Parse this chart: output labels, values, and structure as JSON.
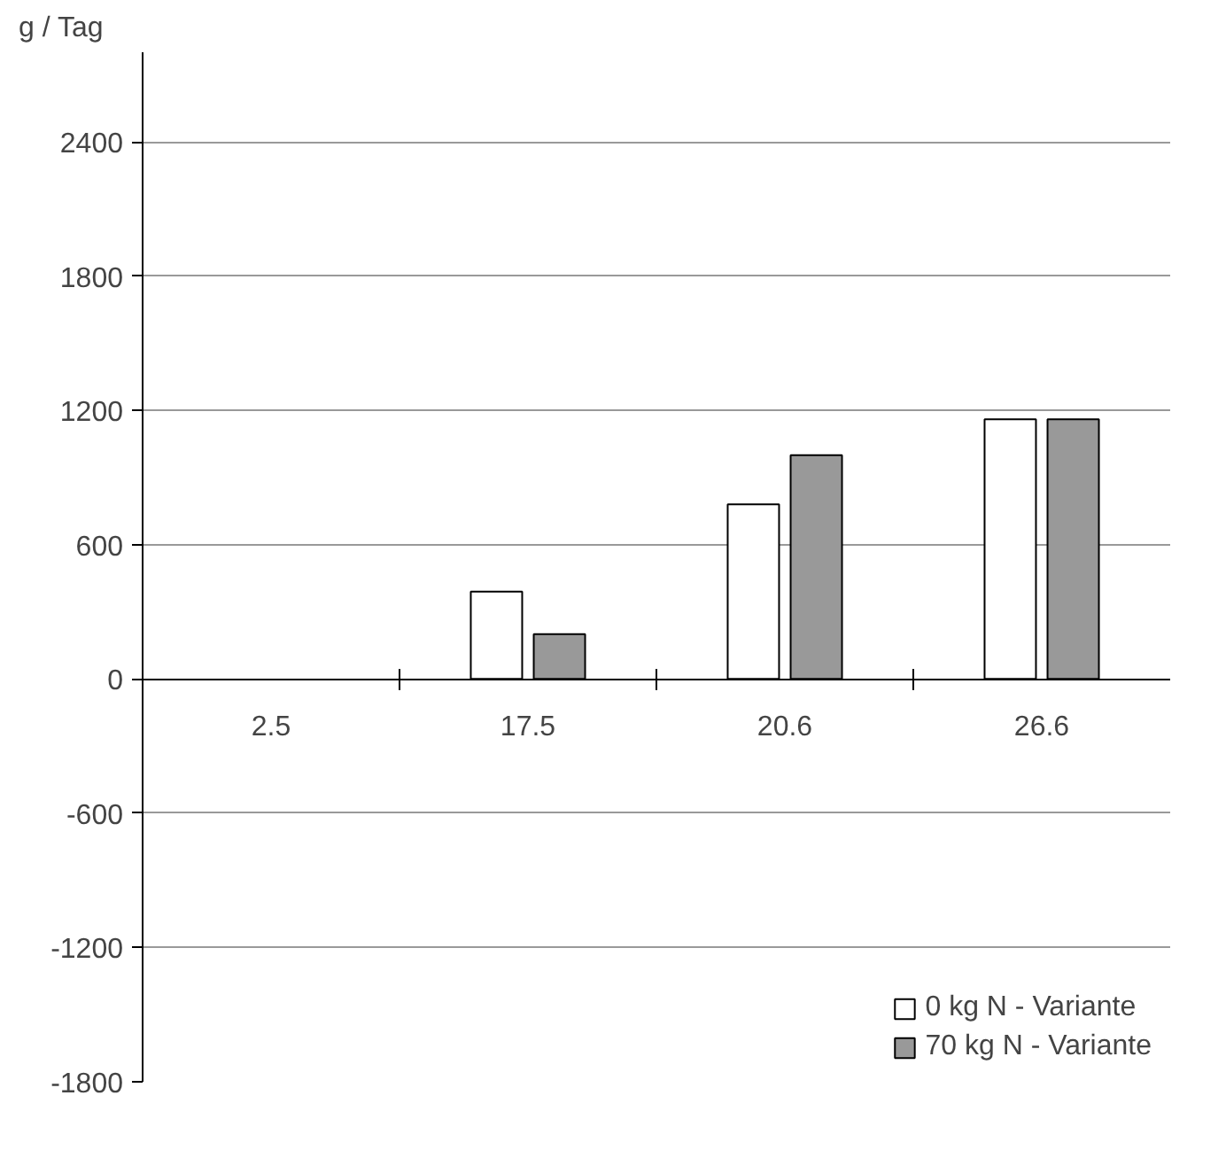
{
  "chart_data": {
    "type": "bar",
    "ylabel": "g / Tag",
    "categories": [
      "2.5",
      "17.5",
      "20.6",
      "26.6"
    ],
    "series": [
      {
        "name": "0 kg N - Variante",
        "color": "#ffffff",
        "values": [
          null,
          390,
          780,
          1160
        ]
      },
      {
        "name": "70 kg N - Variante",
        "color": "#999999",
        "values": [
          null,
          200,
          1000,
          1160
        ]
      }
    ],
    "ylim": [
      -1800,
      2800
    ],
    "yticks": [
      -1800,
      -1200,
      -600,
      0,
      600,
      1200,
      1800,
      2400
    ],
    "grid": "y",
    "legend": "bottom right"
  }
}
